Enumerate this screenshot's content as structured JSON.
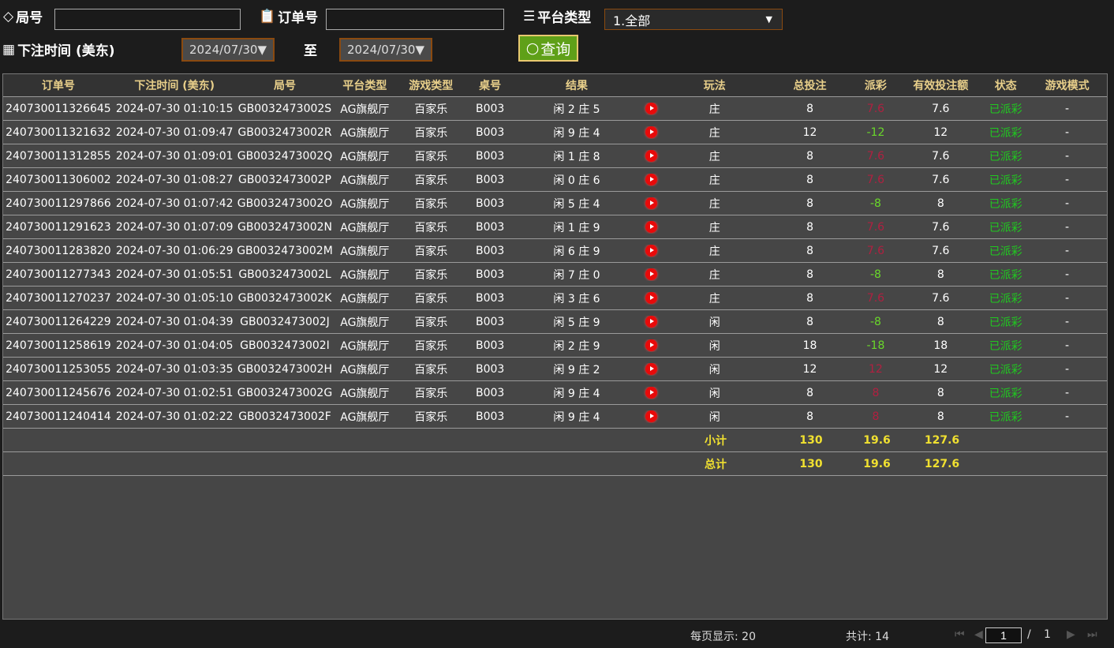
{
  "filters": {
    "round_label": "局号",
    "order_label": "订单号",
    "platform_label": "平台类型",
    "platform_value": "1.全部",
    "time_label": "下注时间 (美东)",
    "date_from": "2024/07/30▼",
    "to_label": "至",
    "date_to": "2024/07/30▼",
    "query_label": "查询"
  },
  "columns": [
    "订单号",
    "下注时间 (美东)",
    "局号",
    "平台类型",
    "游戏类型",
    "桌号",
    "结果",
    "",
    "玩法",
    "总投注",
    "派彩",
    "有效投注额",
    "状态",
    "游戏模式"
  ],
  "rows": [
    [
      "240730011326645",
      "2024-07-30 01:10:15",
      "GB0032473002S",
      "AG旗舰厅",
      "百家乐",
      "B003",
      "闲 2 庄 5",
      "庄",
      "8",
      "7.6",
      "7.6",
      "已派彩",
      "-"
    ],
    [
      "240730011321632",
      "2024-07-30 01:09:47",
      "GB0032473002R",
      "AG旗舰厅",
      "百家乐",
      "B003",
      "闲 9 庄 4",
      "庄",
      "12",
      "-12",
      "12",
      "已派彩",
      "-"
    ],
    [
      "240730011312855",
      "2024-07-30 01:09:01",
      "GB0032473002Q",
      "AG旗舰厅",
      "百家乐",
      "B003",
      "闲 1 庄 8",
      "庄",
      "8",
      "7.6",
      "7.6",
      "已派彩",
      "-"
    ],
    [
      "240730011306002",
      "2024-07-30 01:08:27",
      "GB0032473002P",
      "AG旗舰厅",
      "百家乐",
      "B003",
      "闲 0 庄 6",
      "庄",
      "8",
      "7.6",
      "7.6",
      "已派彩",
      "-"
    ],
    [
      "240730011297866",
      "2024-07-30 01:07:42",
      "GB0032473002O",
      "AG旗舰厅",
      "百家乐",
      "B003",
      "闲 5 庄 4",
      "庄",
      "8",
      "-8",
      "8",
      "已派彩",
      "-"
    ],
    [
      "240730011291623",
      "2024-07-30 01:07:09",
      "GB0032473002N",
      "AG旗舰厅",
      "百家乐",
      "B003",
      "闲 1 庄 9",
      "庄",
      "8",
      "7.6",
      "7.6",
      "已派彩",
      "-"
    ],
    [
      "240730011283820",
      "2024-07-30 01:06:29",
      "GB0032473002M",
      "AG旗舰厅",
      "百家乐",
      "B003",
      "闲 6 庄 9",
      "庄",
      "8",
      "7.6",
      "7.6",
      "已派彩",
      "-"
    ],
    [
      "240730011277343",
      "2024-07-30 01:05:51",
      "GB0032473002L",
      "AG旗舰厅",
      "百家乐",
      "B003",
      "闲 7 庄 0",
      "庄",
      "8",
      "-8",
      "8",
      "已派彩",
      "-"
    ],
    [
      "240730011270237",
      "2024-07-30 01:05:10",
      "GB0032473002K",
      "AG旗舰厅",
      "百家乐",
      "B003",
      "闲 3 庄 6",
      "庄",
      "8",
      "7.6",
      "7.6",
      "已派彩",
      "-"
    ],
    [
      "240730011264229",
      "2024-07-30 01:04:39",
      "GB0032473002J",
      "AG旗舰厅",
      "百家乐",
      "B003",
      "闲 5 庄 9",
      "闲",
      "8",
      "-8",
      "8",
      "已派彩",
      "-"
    ],
    [
      "240730011258619",
      "2024-07-30 01:04:05",
      "GB0032473002I",
      "AG旗舰厅",
      "百家乐",
      "B003",
      "闲 2 庄 9",
      "闲",
      "18",
      "-18",
      "18",
      "已派彩",
      "-"
    ],
    [
      "240730011253055",
      "2024-07-30 01:03:35",
      "GB0032473002H",
      "AG旗舰厅",
      "百家乐",
      "B003",
      "闲 9 庄 2",
      "闲",
      "12",
      "12",
      "12",
      "已派彩",
      "-"
    ],
    [
      "240730011245676",
      "2024-07-30 01:02:51",
      "GB0032473002G",
      "AG旗舰厅",
      "百家乐",
      "B003",
      "闲 9 庄 4",
      "闲",
      "8",
      "8",
      "8",
      "已派彩",
      "-"
    ],
    [
      "240730011240414",
      "2024-07-30 01:02:22",
      "GB0032473002F",
      "AG旗舰厅",
      "百家乐",
      "B003",
      "闲 9 庄 4",
      "闲",
      "8",
      "8",
      "8",
      "已派彩",
      "-"
    ]
  ],
  "subtotal": {
    "label": "小计",
    "bet": "130",
    "payout": "19.6",
    "valid": "127.6"
  },
  "total": {
    "label": "总计",
    "bet": "130",
    "payout": "19.6",
    "valid": "127.6"
  },
  "footer": {
    "per_page": "每页显示: 20",
    "count": "共计: 14",
    "page": "1",
    "sep": "/",
    "pages": "1"
  },
  "colors": {
    "win": "#b02040",
    "loss": "#6ad82a",
    "status": "#20c820",
    "accent": "#5fa018"
  }
}
